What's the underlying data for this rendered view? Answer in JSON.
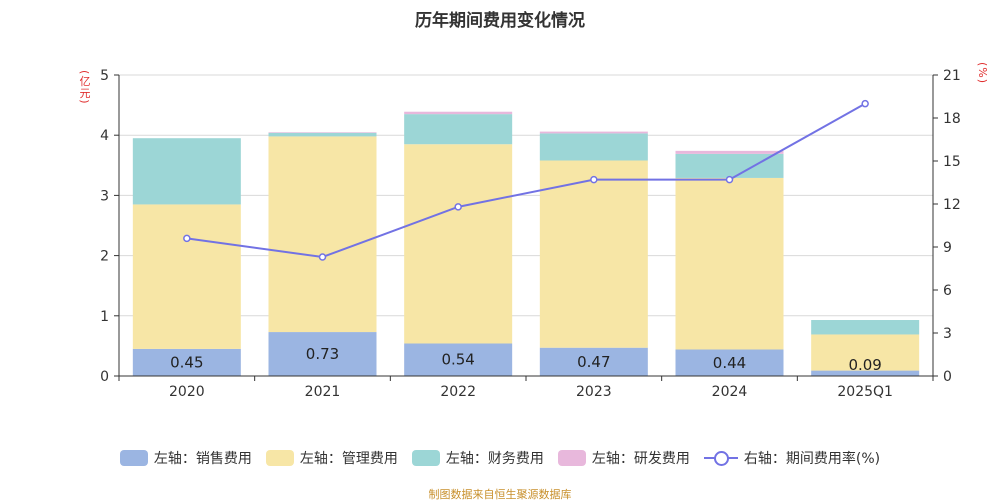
{
  "chart_data": {
    "type": "bar",
    "title": "历年期间费用变化情况",
    "left_axis_unit": "(亿元)",
    "right_axis_unit": "(%)",
    "categories": [
      "2020",
      "2021",
      "2022",
      "2023",
      "2024",
      "2025Q1"
    ],
    "left_axis": {
      "min": 0,
      "max": 5,
      "ticks": [
        "0",
        "1",
        "2",
        "3",
        "4",
        "5"
      ]
    },
    "right_axis": {
      "min": 0,
      "max": 21,
      "ticks": [
        "0",
        "3",
        "6",
        "9",
        "12",
        "15",
        "18",
        "21"
      ]
    },
    "series": [
      {
        "name": "左轴：销售费用",
        "axis": "left",
        "stack": "total",
        "color": "#9bb5e2",
        "values": [
          0.45,
          0.73,
          0.54,
          0.47,
          0.44,
          0.09
        ]
      },
      {
        "name": "左轴：管理费用",
        "axis": "left",
        "stack": "total",
        "color": "#f7e6a6",
        "values": [
          2.4,
          3.25,
          3.31,
          3.11,
          2.85,
          0.6
        ]
      },
      {
        "name": "左轴：财务费用",
        "axis": "left",
        "stack": "total",
        "color": "#9cd6d6",
        "values": [
          1.1,
          0.06,
          0.5,
          0.45,
          0.4,
          0.24
        ]
      },
      {
        "name": "左轴：研发费用",
        "axis": "left",
        "stack": "total",
        "color": "#e8b8dc",
        "values": [
          0.0,
          0.01,
          0.04,
          0.03,
          0.05,
          0.0
        ]
      },
      {
        "name": "右轴：期间费用率(%)",
        "axis": "right",
        "type": "line",
        "color": "#7272e4",
        "values": [
          9.6,
          8.3,
          11.8,
          13.7,
          13.7,
          19.0
        ]
      }
    ],
    "data_labels": [
      "0.45",
      "0.73",
      "0.54",
      "0.47",
      "0.44",
      "0.09"
    ],
    "grid": true,
    "legend_position": "bottom"
  },
  "source_text": "制图数据来自恒生聚源数据库"
}
